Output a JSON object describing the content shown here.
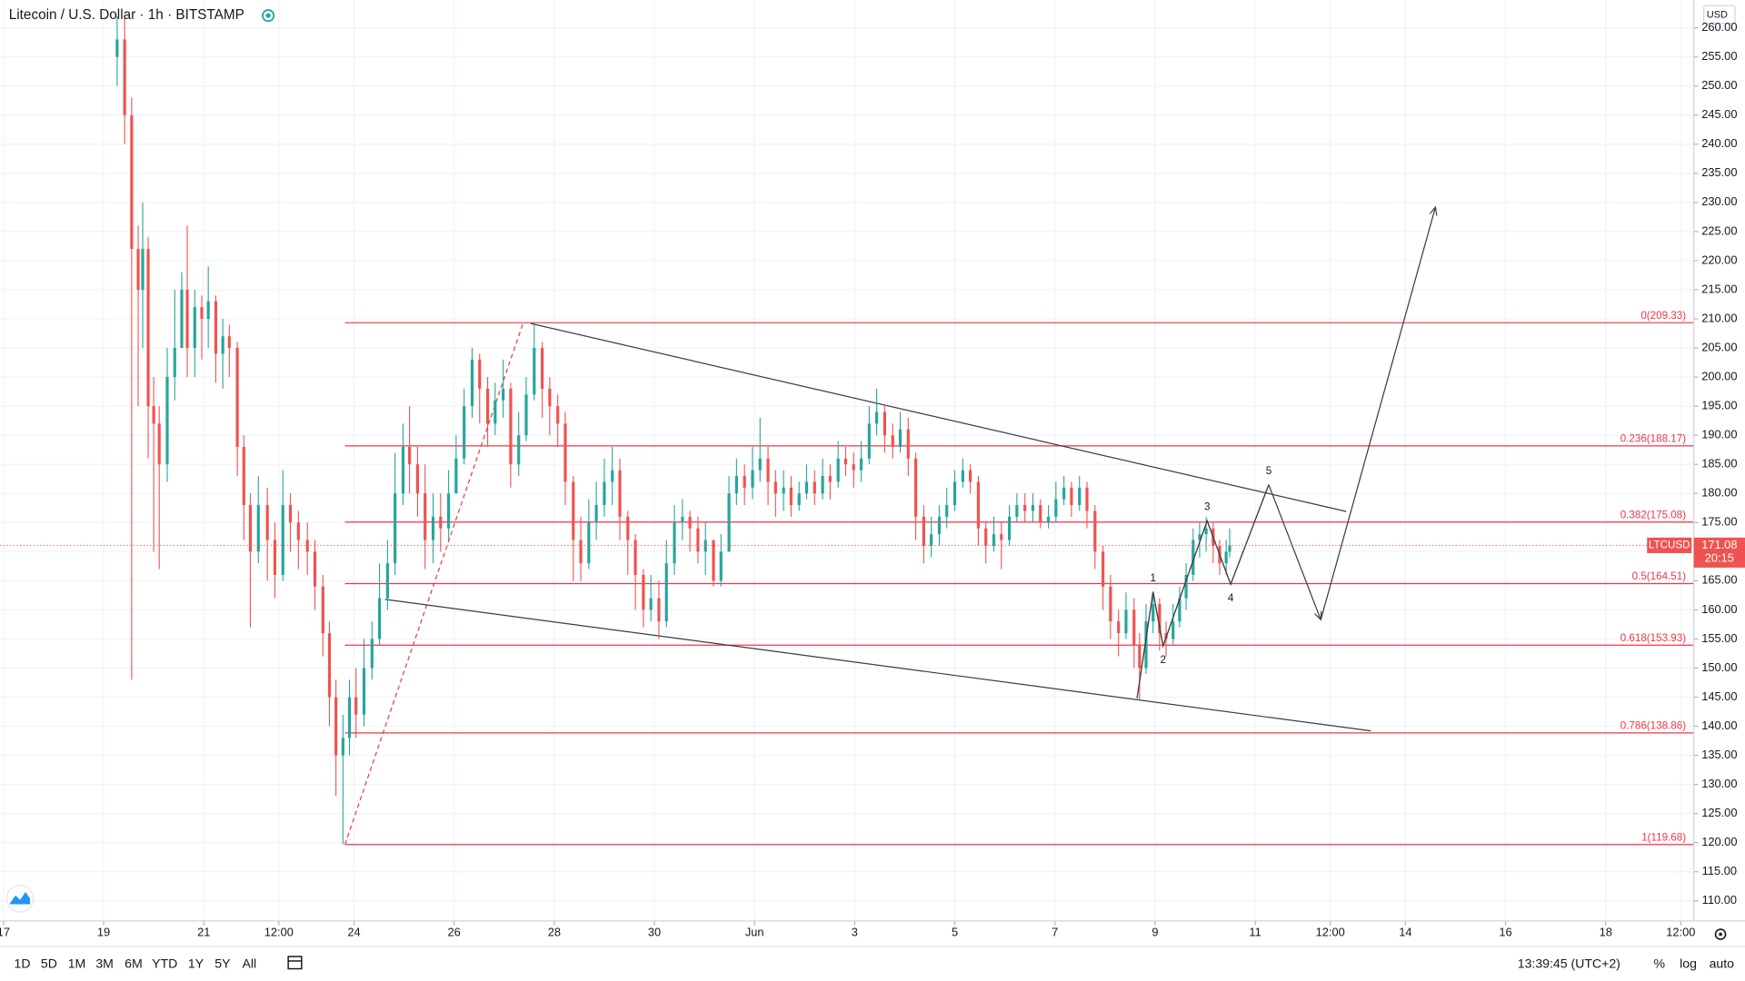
{
  "chart_data": {
    "type": "candlestick",
    "title": "Litecoin / U.S. Dollar · 1h · BITSTAMP",
    "symbol": "LTCUSD",
    "currency": "USD",
    "up_color": "#26a69a",
    "down_color": "#ef5350",
    "fib_color": "#f23645",
    "drawing_color": "#3c3c3c",
    "grid": true,
    "xlim": [
      16.93,
      50.76
    ],
    "ylim": [
      106.55,
      264.78
    ],
    "xticks": [
      17,
      19,
      21,
      {
        "value": 22.5,
        "label": "12:00"
      },
      24,
      26,
      28,
      30,
      {
        "value": 32,
        "label": "Jun"
      },
      {
        "value": 34,
        "label": "3"
      },
      {
        "value": 36,
        "label": "5"
      },
      {
        "value": 38,
        "label": "7"
      },
      {
        "value": 40,
        "label": "9"
      },
      {
        "value": 42,
        "label": "11"
      },
      {
        "value": 43.5,
        "label": "12:00"
      },
      {
        "value": 45,
        "label": "14"
      },
      {
        "value": 47,
        "label": "16"
      },
      {
        "value": 49,
        "label": "18"
      },
      {
        "value": 50.5,
        "label": "12:00"
      }
    ],
    "yticks": [
      {
        "value": 110,
        "label": "110.00"
      },
      {
        "value": 115,
        "label": "115.00"
      },
      {
        "value": 120,
        "label": "120.00"
      },
      {
        "value": 125,
        "label": "125.00"
      },
      {
        "value": 130,
        "label": "130.00"
      },
      {
        "value": 135,
        "label": "135.00"
      },
      {
        "value": 140,
        "label": "140.00"
      },
      {
        "value": 145,
        "label": "145.00"
      },
      {
        "value": 150,
        "label": "150.00"
      },
      {
        "value": 155,
        "label": "155.00"
      },
      {
        "value": 160,
        "label": "160.00"
      },
      {
        "value": 165,
        "label": "165.00"
      },
      {
        "value": 170,
        "label": "170.00"
      },
      {
        "value": 175,
        "label": "175.00"
      },
      {
        "value": 180,
        "label": "180.00"
      },
      {
        "value": 185,
        "label": "185.00"
      },
      {
        "value": 190,
        "label": "190.00"
      },
      {
        "value": 195,
        "label": "195.00"
      },
      {
        "value": 200,
        "label": "200.00"
      },
      {
        "value": 205,
        "label": "205.00"
      },
      {
        "value": 210,
        "label": "210.00"
      },
      {
        "value": 215,
        "label": "215.00"
      },
      {
        "value": 220,
        "label": "220.00"
      },
      {
        "value": 225,
        "label": "225.00"
      },
      {
        "value": 230,
        "label": "230.00"
      },
      {
        "value": 235,
        "label": "235.00"
      },
      {
        "value": 240,
        "label": "240.00"
      },
      {
        "value": 245,
        "label": "245.00"
      },
      {
        "value": 250,
        "label": "250.00"
      },
      {
        "value": 255,
        "label": "255.00"
      },
      {
        "value": 260,
        "label": "260.00"
      }
    ],
    "x": [
      19.27,
      19.42,
      19.56,
      19.69,
      19.78,
      19.89,
      20.0,
      20.11,
      20.27,
      20.42,
      20.56,
      20.67,
      20.82,
      20.96,
      21.09,
      21.24,
      21.38,
      21.51,
      21.67,
      21.8,
      21.93,
      22.09,
      22.27,
      22.42,
      22.58,
      22.73,
      22.89,
      23.07,
      23.22,
      23.38,
      23.51,
      23.64,
      23.78,
      23.91,
      24.04,
      24.2,
      24.36,
      24.51,
      24.67,
      24.82,
      24.98,
      25.11,
      25.27,
      25.42,
      25.58,
      25.73,
      25.89,
      26.04,
      26.2,
      26.36,
      26.51,
      26.67,
      26.82,
      26.98,
      27.13,
      27.29,
      27.44,
      27.6,
      27.76,
      27.91,
      28.07,
      28.22,
      28.38,
      28.53,
      28.69,
      28.84,
      29.0,
      29.16,
      29.31,
      29.47,
      29.62,
      29.78,
      29.93,
      30.09,
      30.24,
      30.4,
      30.56,
      30.71,
      30.87,
      31.02,
      31.18,
      31.33,
      31.49,
      31.64,
      31.8,
      31.96,
      32.11,
      32.27,
      32.42,
      32.58,
      32.73,
      32.89,
      33.04,
      33.2,
      33.36,
      33.51,
      33.67,
      33.82,
      33.98,
      34.13,
      34.29,
      34.44,
      34.6,
      34.76,
      34.91,
      35.07,
      35.22,
      35.38,
      35.53,
      35.69,
      35.84,
      36.0,
      36.16,
      36.31,
      36.47,
      36.62,
      36.78,
      36.93,
      37.09,
      37.24,
      37.4,
      37.56,
      37.71,
      37.87,
      38.02,
      38.18,
      38.33,
      38.49,
      38.64,
      38.8,
      38.96,
      39.11,
      39.27,
      39.42,
      39.58,
      39.69,
      39.82,
      39.96,
      40.09,
      40.22,
      40.36,
      40.49,
      40.62,
      40.76,
      40.89,
      41.02,
      41.16,
      41.29,
      41.42,
      41.49
    ],
    "open": [
      255,
      258,
      245,
      222,
      215,
      222,
      195,
      192,
      185,
      200,
      205,
      215,
      205,
      212,
      210,
      213,
      204,
      207,
      205,
      188,
      178,
      170,
      178,
      172,
      166,
      178,
      175,
      172,
      170,
      164,
      156,
      145,
      135,
      138,
      145,
      142,
      150,
      155,
      162,
      168,
      180,
      188,
      185,
      180,
      172,
      176,
      174,
      180,
      186,
      195,
      203,
      198,
      192,
      196,
      198,
      185,
      190,
      197,
      205,
      198,
      195,
      192,
      182,
      172,
      168,
      175,
      178,
      182,
      184,
      176,
      172,
      166,
      160,
      162,
      158,
      168,
      175,
      176,
      174,
      170,
      172,
      165,
      170,
      180,
      183,
      181,
      184,
      186,
      182,
      180,
      181,
      178,
      180,
      182,
      180,
      183,
      182,
      186,
      185,
      184,
      186,
      192,
      194,
      190,
      188,
      191,
      186,
      176,
      171,
      173,
      176,
      178,
      182,
      184,
      182,
      174,
      171,
      173,
      172,
      176,
      178,
      177,
      178,
      175,
      176,
      179,
      181,
      178,
      181,
      177,
      170,
      164,
      158,
      156,
      160,
      154,
      150,
      158,
      161,
      156,
      155,
      158,
      162,
      166,
      172,
      173,
      174,
      171,
      168,
      170
    ],
    "high": [
      262,
      262,
      248,
      226,
      230,
      224,
      200,
      195,
      205,
      215,
      218,
      226,
      215,
      214,
      219,
      214,
      210,
      209,
      206,
      190,
      180,
      183,
      181,
      175,
      184,
      180,
      177,
      175,
      172,
      166,
      158,
      148,
      142,
      148,
      150,
      155,
      158,
      168,
      172,
      187,
      192,
      195,
      188,
      185,
      180,
      180,
      184,
      190,
      198,
      205,
      204,
      200,
      199,
      203,
      199,
      194,
      200,
      209.33,
      206,
      200,
      197,
      194,
      183,
      176,
      179,
      182,
      186,
      188,
      186,
      177,
      173,
      167,
      166,
      165,
      172,
      178,
      179,
      177,
      176,
      175,
      172,
      173,
      183,
      186,
      185,
      188,
      193,
      188,
      184,
      184,
      183,
      182,
      185,
      184,
      186,
      185,
      189,
      188,
      187,
      189,
      195,
      198,
      195,
      192,
      194,
      193,
      187,
      178,
      176,
      178,
      181,
      184,
      186,
      185,
      183,
      175,
      176,
      175,
      178,
      180,
      180,
      180,
      179,
      178,
      182,
      183,
      182,
      183,
      182,
      178,
      171,
      166,
      160,
      163,
      162,
      156,
      161,
      163,
      162,
      158,
      161,
      164,
      168,
      174,
      175,
      176,
      175,
      172,
      172,
      174
    ],
    "low": [
      250,
      240,
      148,
      195,
      205,
      186,
      170,
      167,
      182,
      196,
      205,
      200,
      200,
      203,
      205,
      199,
      198,
      200,
      183,
      172,
      157,
      168,
      165,
      162,
      165,
      170,
      167,
      166,
      160,
      152,
      140,
      128,
      119.68,
      135,
      138,
      140,
      148,
      154,
      160,
      166,
      178,
      180,
      176,
      167,
      168,
      170,
      172,
      180,
      185,
      193,
      192,
      188,
      190,
      193,
      181,
      183,
      189,
      196,
      193,
      190,
      188,
      178,
      165,
      165,
      167,
      172,
      176,
      178,
      172,
      166,
      160,
      157,
      158,
      155,
      157,
      166,
      172,
      170,
      168,
      166,
      164,
      164,
      170,
      178,
      178,
      179,
      182,
      178,
      176,
      177,
      176,
      177,
      179,
      178,
      179,
      179,
      181,
      183,
      181,
      182,
      185,
      190,
      187,
      186,
      187,
      183,
      172,
      168,
      169,
      171,
      174,
      177,
      181,
      180,
      171,
      168,
      170,
      167,
      171,
      175,
      175,
      175,
      174,
      174,
      175,
      178,
      176,
      177,
      174,
      167,
      160,
      155,
      152,
      155,
      150,
      144.6,
      149,
      156,
      153,
      152,
      154,
      157,
      160,
      165,
      169,
      170,
      168,
      166,
      166,
      169
    ],
    "close": [
      258,
      245,
      222,
      215,
      222,
      195,
      192,
      185,
      200,
      205,
      215,
      205,
      212,
      210,
      213,
      204,
      207,
      205,
      188,
      178,
      170,
      178,
      172,
      166,
      178,
      175,
      172,
      170,
      164,
      156,
      145,
      135,
      138,
      145,
      142,
      150,
      155,
      162,
      168,
      180,
      188,
      185,
      180,
      172,
      176,
      174,
      180,
      186,
      195,
      203,
      198,
      192,
      196,
      198,
      185,
      190,
      197,
      205,
      198,
      195,
      192,
      182,
      172,
      168,
      175,
      178,
      182,
      184,
      176,
      172,
      166,
      160,
      162,
      158,
      168,
      175,
      176,
      174,
      170,
      172,
      165,
      170,
      180,
      183,
      181,
      184,
      186,
      182,
      180,
      181,
      178,
      180,
      182,
      180,
      183,
      182,
      186,
      185,
      184,
      186,
      192,
      194,
      190,
      188,
      191,
      186,
      176,
      171,
      173,
      176,
      178,
      182,
      184,
      182,
      174,
      171,
      173,
      172,
      176,
      178,
      177,
      178,
      175,
      176,
      179,
      181,
      178,
      181,
      177,
      170,
      164,
      158,
      156,
      160,
      154,
      150,
      158,
      161,
      156,
      155,
      158,
      162,
      166,
      172,
      173,
      174,
      171,
      168,
      170,
      171.08
    ],
    "last_price": 171.08,
    "countdown": "20:15",
    "fib_levels": [
      {
        "value": 209.33,
        "label": "0(209.33)"
      },
      {
        "value": 188.17,
        "label": "0.236(188.17)"
      },
      {
        "value": 175.08,
        "label": "0.382(175.08)"
      },
      {
        "value": 164.51,
        "label": "0.5(164.51)"
      },
      {
        "value": 153.93,
        "label": "0.618(153.93)"
      },
      {
        "value": 138.86,
        "label": "0.786(138.86)"
      },
      {
        "value": 119.68,
        "label": "1(119.68)"
      }
    ],
    "fib_start": 23.82,
    "fib_anchor": [
      [
        23.82,
        119.68
      ],
      [
        27.38,
        209.33
      ]
    ],
    "trendlines": [
      [
        [
          27.53,
          209.2
        ],
        [
          43.82,
          176.9
        ]
      ],
      [
        [
          24.62,
          161.8
        ],
        [
          44.31,
          139.2
        ]
      ]
    ],
    "wave": {
      "points": [
        [
          39.64,
          144.8
        ],
        [
          39.96,
          163.1
        ],
        [
          40.16,
          153.8
        ],
        [
          41.04,
          175.3
        ],
        [
          41.51,
          164.4
        ],
        [
          42.27,
          181.5
        ]
      ],
      "labels": [
        "1",
        "2",
        "3",
        "4",
        "5"
      ]
    },
    "projection": [
      [
        [
          42.27,
          181.5
        ],
        [
          43.31,
          158.3
        ]
      ],
      [
        [
          43.31,
          158.3
        ],
        [
          45.6,
          229.2
        ]
      ]
    ]
  },
  "ui": {
    "ranges": [
      "1D",
      "5D",
      "1M",
      "3M",
      "6M",
      "YTD",
      "1Y",
      "5Y",
      "All"
    ],
    "clock": "13:39:45 (UTC+2)",
    "scale_buttons": [
      "%",
      "log",
      "auto"
    ]
  }
}
